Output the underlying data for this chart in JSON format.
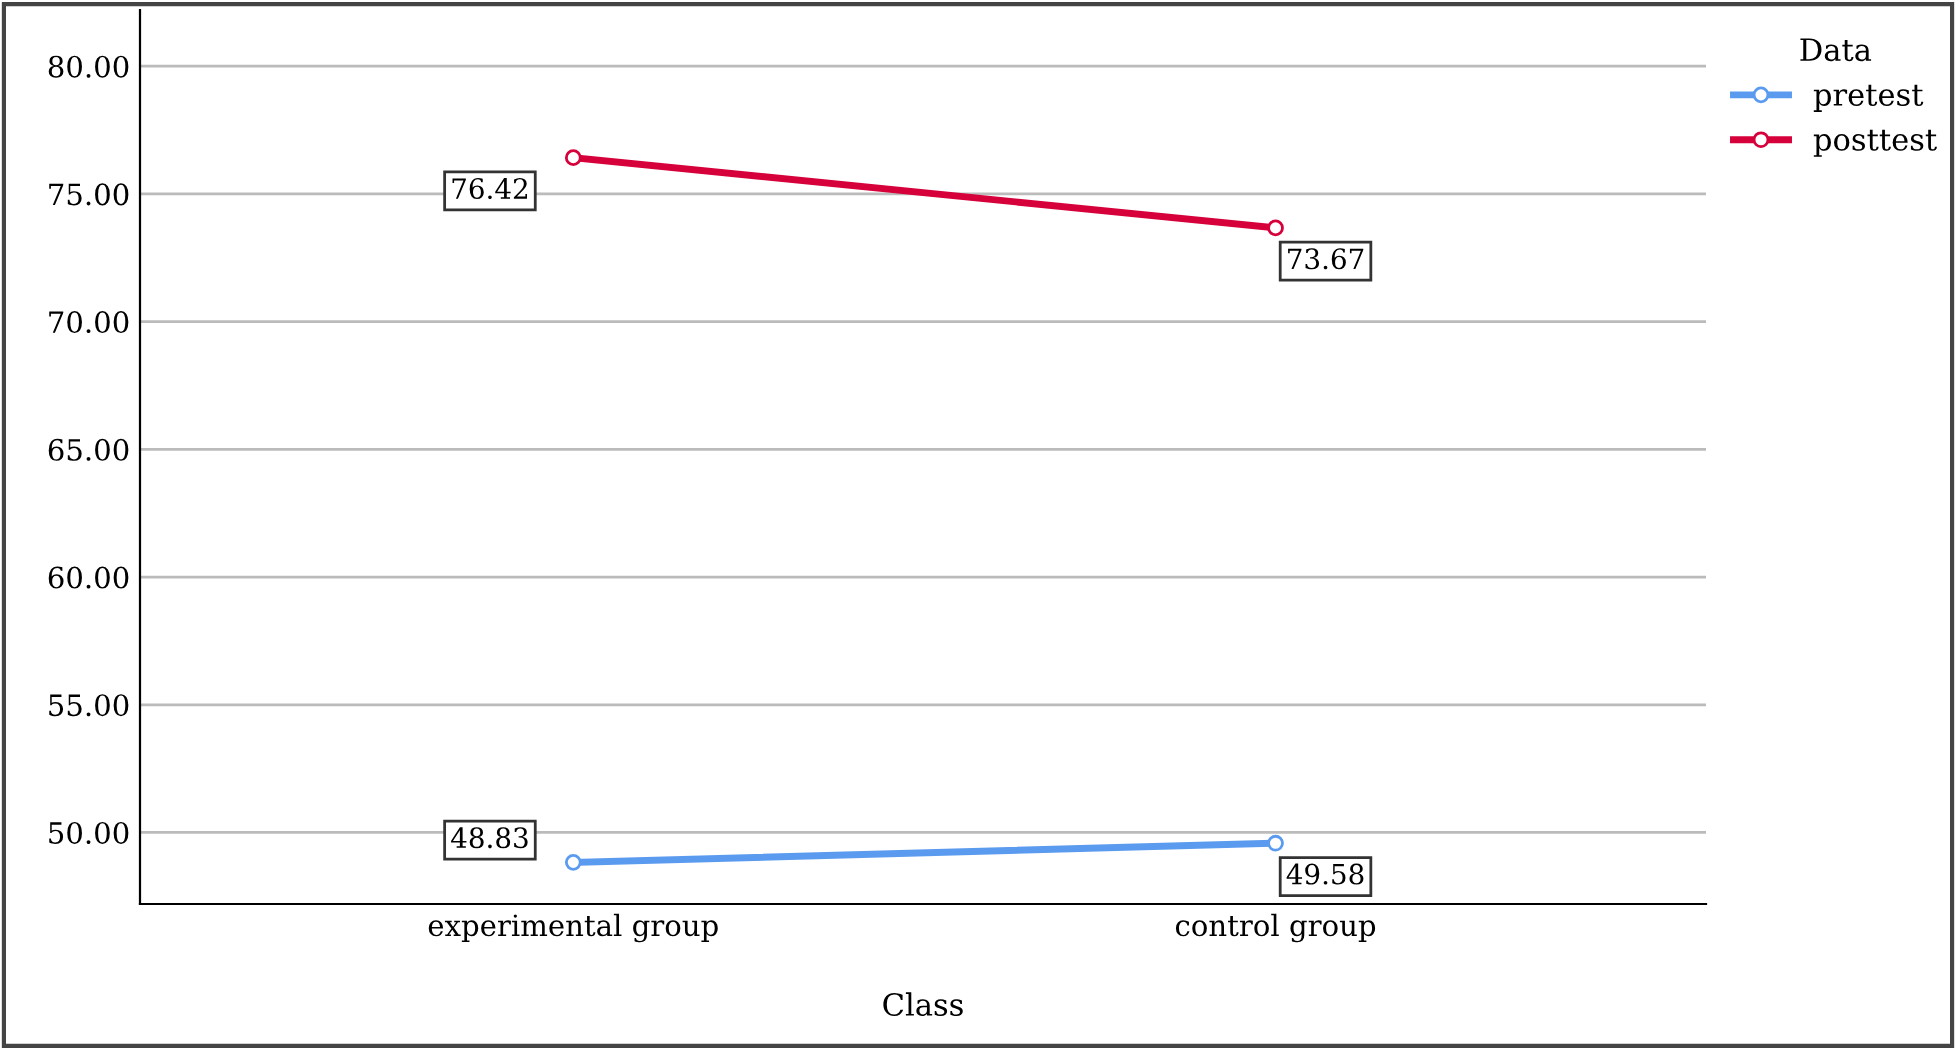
{
  "chart_data": {
    "type": "line",
    "xlabel": "Class",
    "legend_title": "Data",
    "categories": [
      "experimental group",
      "control group"
    ],
    "series": [
      {
        "name": "pretest",
        "color": "#5b9bef",
        "values": [
          48.83,
          49.58
        ]
      },
      {
        "name": "posttest",
        "color": "#d6003a",
        "values": [
          76.42,
          73.67
        ]
      }
    ],
    "ylim": [
      47.2,
      82.2
    ],
    "yticks": [
      {
        "value": 50,
        "label": "50.00"
      },
      {
        "value": 55,
        "label": "55.00"
      },
      {
        "value": 60,
        "label": "60.00"
      },
      {
        "value": 65,
        "label": "65.00"
      },
      {
        "value": 70,
        "label": "70.00"
      },
      {
        "value": 75,
        "label": "75.00"
      },
      {
        "value": 80,
        "label": "80.00"
      }
    ],
    "grid": "y",
    "legend": "top right",
    "marker": "circle",
    "line_style": "solid",
    "data_labels": true
  }
}
